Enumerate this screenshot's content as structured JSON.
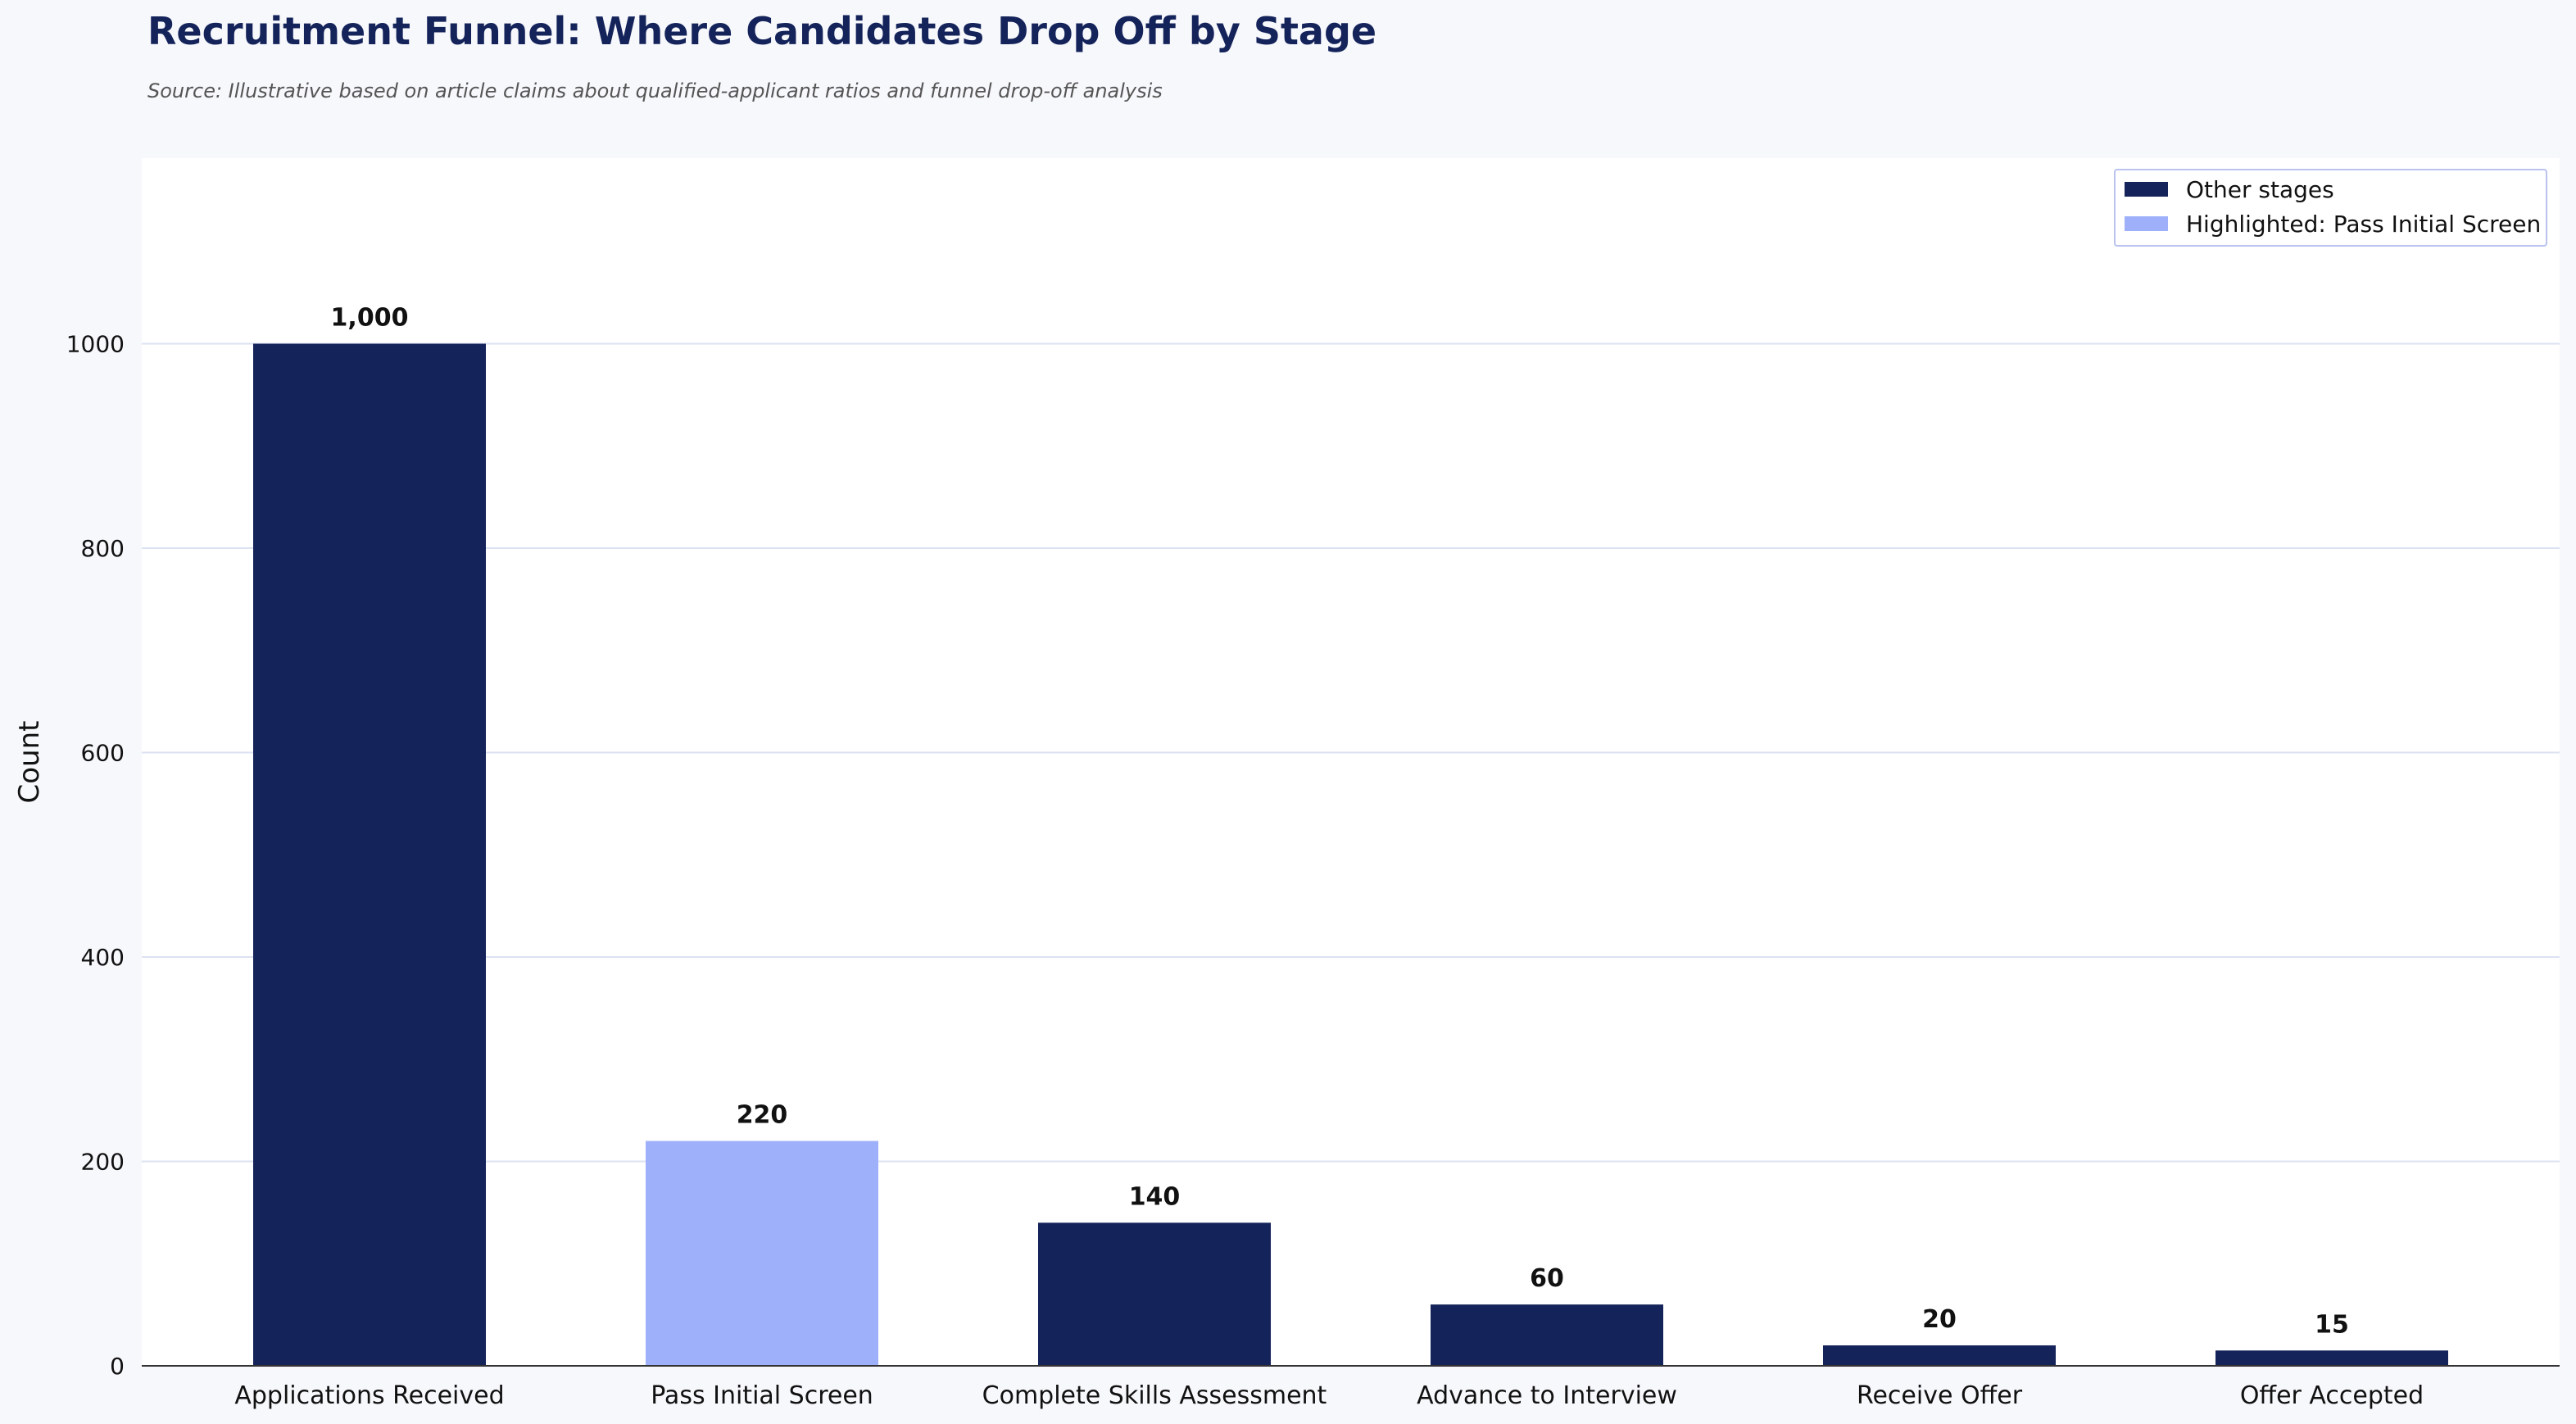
{
  "chart_data": {
    "type": "bar",
    "title": "Recruitment Funnel: Where Candidates Drop Off by Stage",
    "subtitle": "Source: Illustrative based on article claims about qualified-applicant ratios and funnel drop-off analysis",
    "xlabel": "",
    "ylabel": "Count",
    "categories": [
      "Applications Received",
      "Pass Initial Screen",
      "Complete Skills Assessment",
      "Advance to Interview",
      "Receive Offer",
      "Offer Accepted"
    ],
    "values": [
      1000,
      220,
      140,
      60,
      20,
      15
    ],
    "value_labels": [
      "1,000",
      "220",
      "140",
      "60",
      "20",
      "15"
    ],
    "highlight_index": 1,
    "ylim": [
      0,
      1180
    ],
    "yticks": [
      0,
      200,
      400,
      600,
      800,
      1000
    ],
    "grid": "horizontal",
    "legend": {
      "placement": "top-right",
      "entries": [
        {
          "label": "Other stages",
          "color": "#14235a"
        },
        {
          "label": "Highlighted: Pass Initial Screen",
          "color": "#9fb0fb"
        }
      ]
    },
    "colors": {
      "default_bar": "#14235a",
      "highlight_bar": "#9fb0fb",
      "title": "#14235a",
      "grid": "#dde2f2",
      "page_bg": "#f7f8fc",
      "plot_bg": "#ffffff"
    }
  }
}
